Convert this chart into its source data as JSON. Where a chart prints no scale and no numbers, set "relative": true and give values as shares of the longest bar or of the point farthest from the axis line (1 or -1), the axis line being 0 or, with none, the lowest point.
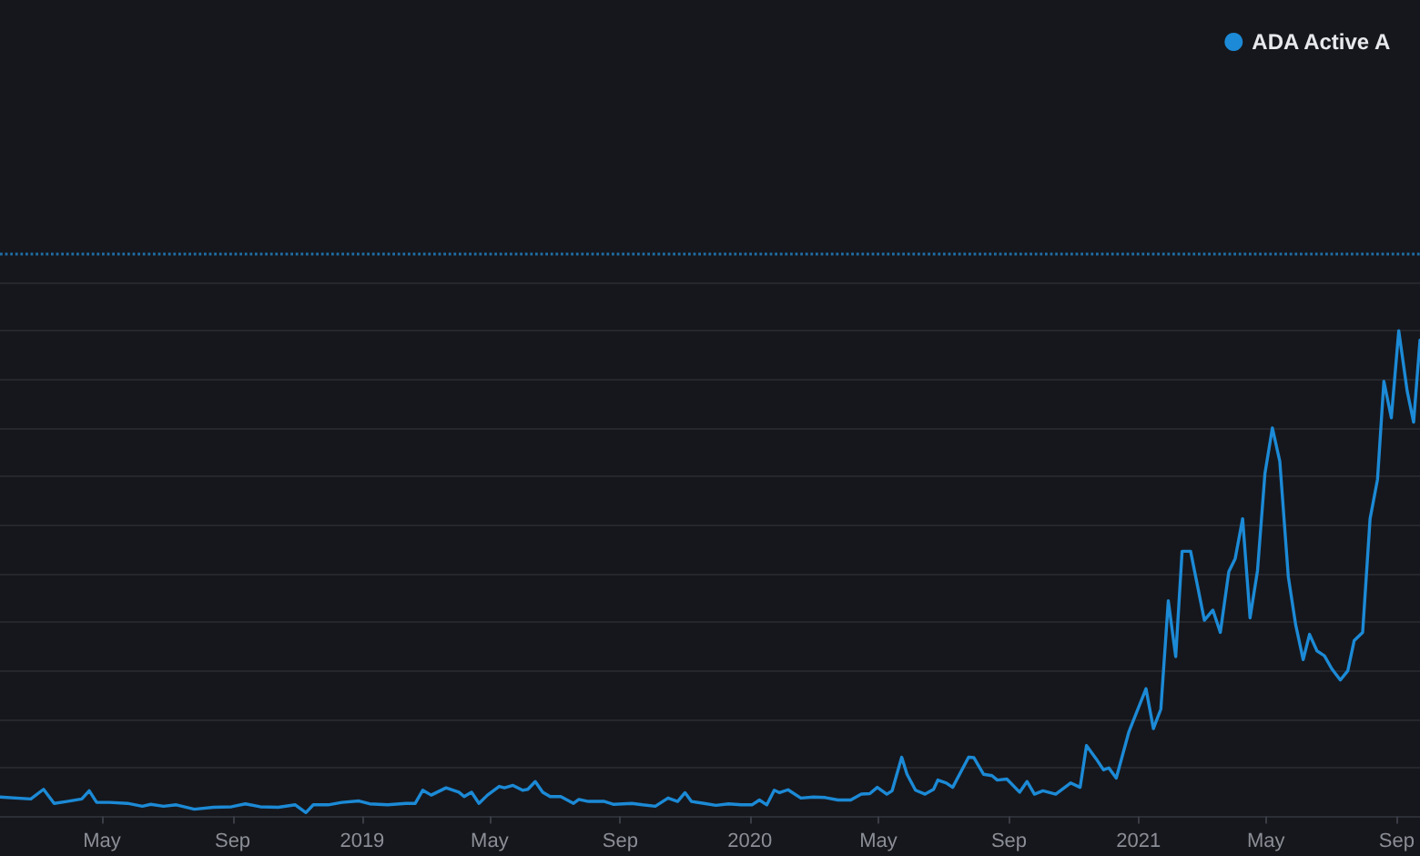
{
  "chart_data": {
    "type": "line",
    "relative": true,
    "legend": "top right",
    "grid": "y",
    "x": [
      "2018-01-25",
      "2018-02-23",
      "2018-03-07",
      "2018-03-17",
      "2018-03-29",
      "2018-04-12",
      "2018-04-19",
      "2018-04-26",
      "2018-05-08",
      "2018-05-25",
      "2018-06-08",
      "2018-06-16",
      "2018-06-28",
      "2018-07-10",
      "2018-07-27",
      "2018-08-14",
      "2018-08-31",
      "2018-09-13",
      "2018-09-27",
      "2018-10-14",
      "2018-10-30",
      "2018-11-09",
      "2018-11-16",
      "2018-11-30",
      "2018-12-13",
      "2018-12-29",
      "2019-01-08",
      "2019-01-25",
      "2019-02-11",
      "2019-02-20",
      "2019-02-27",
      "2019-03-07",
      "2019-03-21",
      "2019-04-02",
      "2019-04-07",
      "2019-04-14",
      "2019-04-21",
      "2019-04-29",
      "2019-05-10",
      "2019-05-15",
      "2019-05-23",
      "2019-06-01",
      "2019-06-06",
      "2019-06-13",
      "2019-06-20",
      "2019-06-27",
      "2019-07-07",
      "2019-07-19",
      "2019-07-24",
      "2019-08-02",
      "2019-08-17",
      "2019-08-26",
      "2019-09-12",
      "2019-09-22",
      "2019-10-04",
      "2019-10-16",
      "2019-10-25",
      "2019-11-01",
      "2019-11-07",
      "2019-11-19",
      "2019-11-30",
      "2019-12-12",
      "2019-12-24",
      "2020-01-03",
      "2020-01-10",
      "2020-01-17",
      "2020-01-24",
      "2020-01-29",
      "2020-02-06",
      "2020-02-18",
      "2020-03-01",
      "2020-03-12",
      "2020-03-24",
      "2020-04-05",
      "2020-04-15",
      "2020-04-23",
      "2020-04-30",
      "2020-05-09",
      "2020-05-14",
      "2020-05-23",
      "2020-05-28",
      "2020-06-05",
      "2020-06-14",
      "2020-06-22",
      "2020-06-26",
      "2020-07-04",
      "2020-07-10",
      "2020-07-25",
      "2020-07-30",
      "2020-08-08",
      "2020-08-16",
      "2020-08-21",
      "2020-08-30",
      "2020-09-11",
      "2020-09-18",
      "2020-09-25",
      "2020-10-03",
      "2020-10-15",
      "2020-10-29",
      "2020-11-07",
      "2020-11-13",
      "2020-11-22",
      "2020-11-29",
      "2020-12-04",
      "2020-12-11",
      "2020-12-23",
      "2021-01-08",
      "2021-01-15",
      "2021-01-22",
      "2021-01-29",
      "2021-02-05",
      "2021-02-11",
      "2021-02-19",
      "2021-03-04",
      "2021-03-12",
      "2021-03-19",
      "2021-03-27",
      "2021-04-02",
      "2021-04-09",
      "2021-04-16",
      "2021-04-23",
      "2021-04-30",
      "2021-05-07",
      "2021-05-14",
      "2021-05-22",
      "2021-05-29",
      "2021-06-05",
      "2021-06-11",
      "2021-06-18",
      "2021-06-25",
      "2021-07-02",
      "2021-07-10",
      "2021-07-17",
      "2021-07-23",
      "2021-07-31",
      "2021-08-07",
      "2021-08-14",
      "2021-08-20",
      "2021-08-27",
      "2021-09-03",
      "2021-09-11",
      "2021-09-17",
      "2021-09-23"
    ],
    "series": [
      {
        "name": "ADA Active A",
        "color": "#1c8ad6",
        "values": [
          0.04,
          0.036,
          0.056,
          0.027,
          0.031,
          0.036,
          0.053,
          0.029,
          0.029,
          0.027,
          0.021,
          0.025,
          0.021,
          0.024,
          0.015,
          0.019,
          0.02,
          0.026,
          0.02,
          0.019,
          0.024,
          0.008,
          0.024,
          0.024,
          0.029,
          0.032,
          0.026,
          0.024,
          0.027,
          0.027,
          0.054,
          0.044,
          0.059,
          0.05,
          0.041,
          0.05,
          0.027,
          0.044,
          0.062,
          0.059,
          0.064,
          0.054,
          0.056,
          0.072,
          0.05,
          0.041,
          0.041,
          0.027,
          0.035,
          0.031,
          0.031,
          0.025,
          0.027,
          0.024,
          0.021,
          0.038,
          0.031,
          0.049,
          0.031,
          0.027,
          0.023,
          0.026,
          0.024,
          0.024,
          0.034,
          0.024,
          0.054,
          0.049,
          0.055,
          0.038,
          0.04,
          0.039,
          0.034,
          0.034,
          0.046,
          0.047,
          0.06,
          0.046,
          0.053,
          0.122,
          0.087,
          0.054,
          0.046,
          0.056,
          0.075,
          0.069,
          0.06,
          0.122,
          0.121,
          0.087,
          0.084,
          0.075,
          0.077,
          0.05,
          0.072,
          0.046,
          0.053,
          0.046,
          0.069,
          0.06,
          0.146,
          0.119,
          0.096,
          0.1,
          0.079,
          0.175,
          0.263,
          0.181,
          0.221,
          0.444,
          0.329,
          0.546,
          0.546,
          0.404,
          0.425,
          0.379,
          0.504,
          0.531,
          0.613,
          0.409,
          0.506,
          0.706,
          0.8,
          0.731,
          0.494,
          0.394,
          0.323,
          0.375,
          0.341,
          0.331,
          0.304,
          0.281,
          0.3,
          0.362,
          0.379,
          0.613,
          0.694,
          0.896,
          0.821,
          1.0,
          0.875,
          0.812,
          0.981
        ]
      }
    ],
    "xlim": [
      "2018-01-25",
      "2021-09-23"
    ],
    "xticks": [
      {
        "value": "2018-05-01",
        "label": "May"
      },
      {
        "value": "2018-09-01",
        "label": "Sep"
      },
      {
        "value": "2019-01-01",
        "label": "2019"
      },
      {
        "value": "2019-05-01",
        "label": "May"
      },
      {
        "value": "2019-09-01",
        "label": "Sep"
      },
      {
        "value": "2020-01-01",
        "label": "2020"
      },
      {
        "value": "2020-05-01",
        "label": "May"
      },
      {
        "value": "2020-09-01",
        "label": "Sep"
      },
      {
        "value": "2021-01-01",
        "label": "2021"
      },
      {
        "value": "2021-05-01",
        "label": "May"
      },
      {
        "value": "2021-09-01",
        "label": "Sep"
      }
    ],
    "ref_lines": [
      {
        "axis": "y",
        "value": 1.161,
        "color": "#1f6fa6",
        "line_style": "dotted"
      }
    ]
  }
}
